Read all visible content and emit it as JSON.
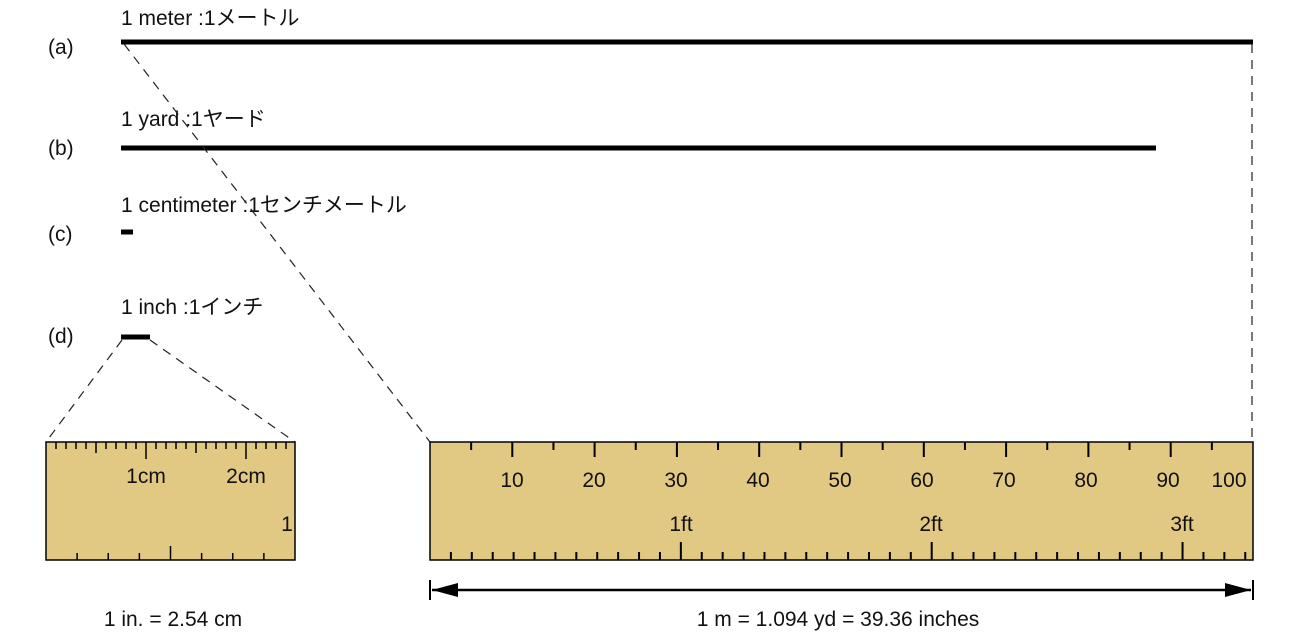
{
  "rows": [
    {
      "letter": "(a)",
      "label": "1 meter :1メートル"
    },
    {
      "letter": "(b)",
      "label": "1 yard :1ヤード"
    },
    {
      "letter": "(c)",
      "label": "1 centimeter :1センチメートル"
    },
    {
      "letter": "(d)",
      "label": "1 inch :1インチ"
    }
  ],
  "small_ruler": {
    "cm_labels": [
      "1cm",
      "2cm"
    ],
    "inch_label": "1"
  },
  "big_ruler": {
    "cm_labels": [
      "10",
      "20",
      "30",
      "40",
      "50",
      "60",
      "70",
      "80",
      "90",
      "100"
    ],
    "ft_labels": [
      "1ft",
      "2ft",
      "3ft"
    ]
  },
  "captions": {
    "inch": "1 in. = 2.54 cm",
    "meter": "1 m = 1.094 yd = 39.36 inches"
  },
  "colors": {
    "ruler_fill": "#e2c983",
    "line": "#000000",
    "text": "#111111"
  }
}
